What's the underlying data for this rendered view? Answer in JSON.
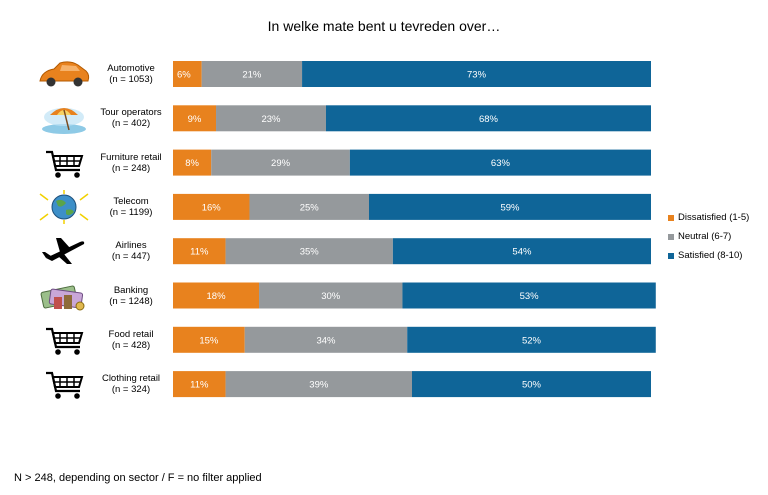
{
  "chart_data": {
    "type": "bar",
    "orientation": "horizontal",
    "stacked": true,
    "percent": true,
    "title": "In welke mate bent u tevreden over…",
    "categories": [
      "Automotive",
      "Tour operators",
      "Furniture retail",
      "Telecom",
      "Airlines",
      "Banking",
      "Food retail",
      "Clothing retail"
    ],
    "sample_sizes": [
      "(n = 1053)",
      "(n = 402)",
      "(n = 248)",
      "(n = 1199)",
      "(n = 447)",
      "(n = 1248)",
      "(n = 428)",
      "(n = 324)"
    ],
    "icons": [
      "car-icon",
      "beach-umbrella-icon",
      "shopping-cart-icon",
      "globe-icon",
      "airplane-icon",
      "money-icon",
      "shopping-cart-icon",
      "shopping-cart-icon"
    ],
    "series": [
      {
        "name": "Dissatisfied (1-5)",
        "color": "#e8821e",
        "values": [
          6,
          9,
          8,
          16,
          11,
          18,
          15,
          11
        ]
      },
      {
        "name": "Neutral (6-7)",
        "color": "#95999c",
        "values": [
          21,
          23,
          29,
          25,
          35,
          30,
          34,
          39
        ]
      },
      {
        "name": "Satisfied (8-10)",
        "color": "#0f6598",
        "values": [
          73,
          68,
          63,
          59,
          54,
          53,
          52,
          50
        ]
      }
    ],
    "legend_position": "right",
    "grid": false
  },
  "footnote": "N > 248, depending on sector / F = no filter applied"
}
